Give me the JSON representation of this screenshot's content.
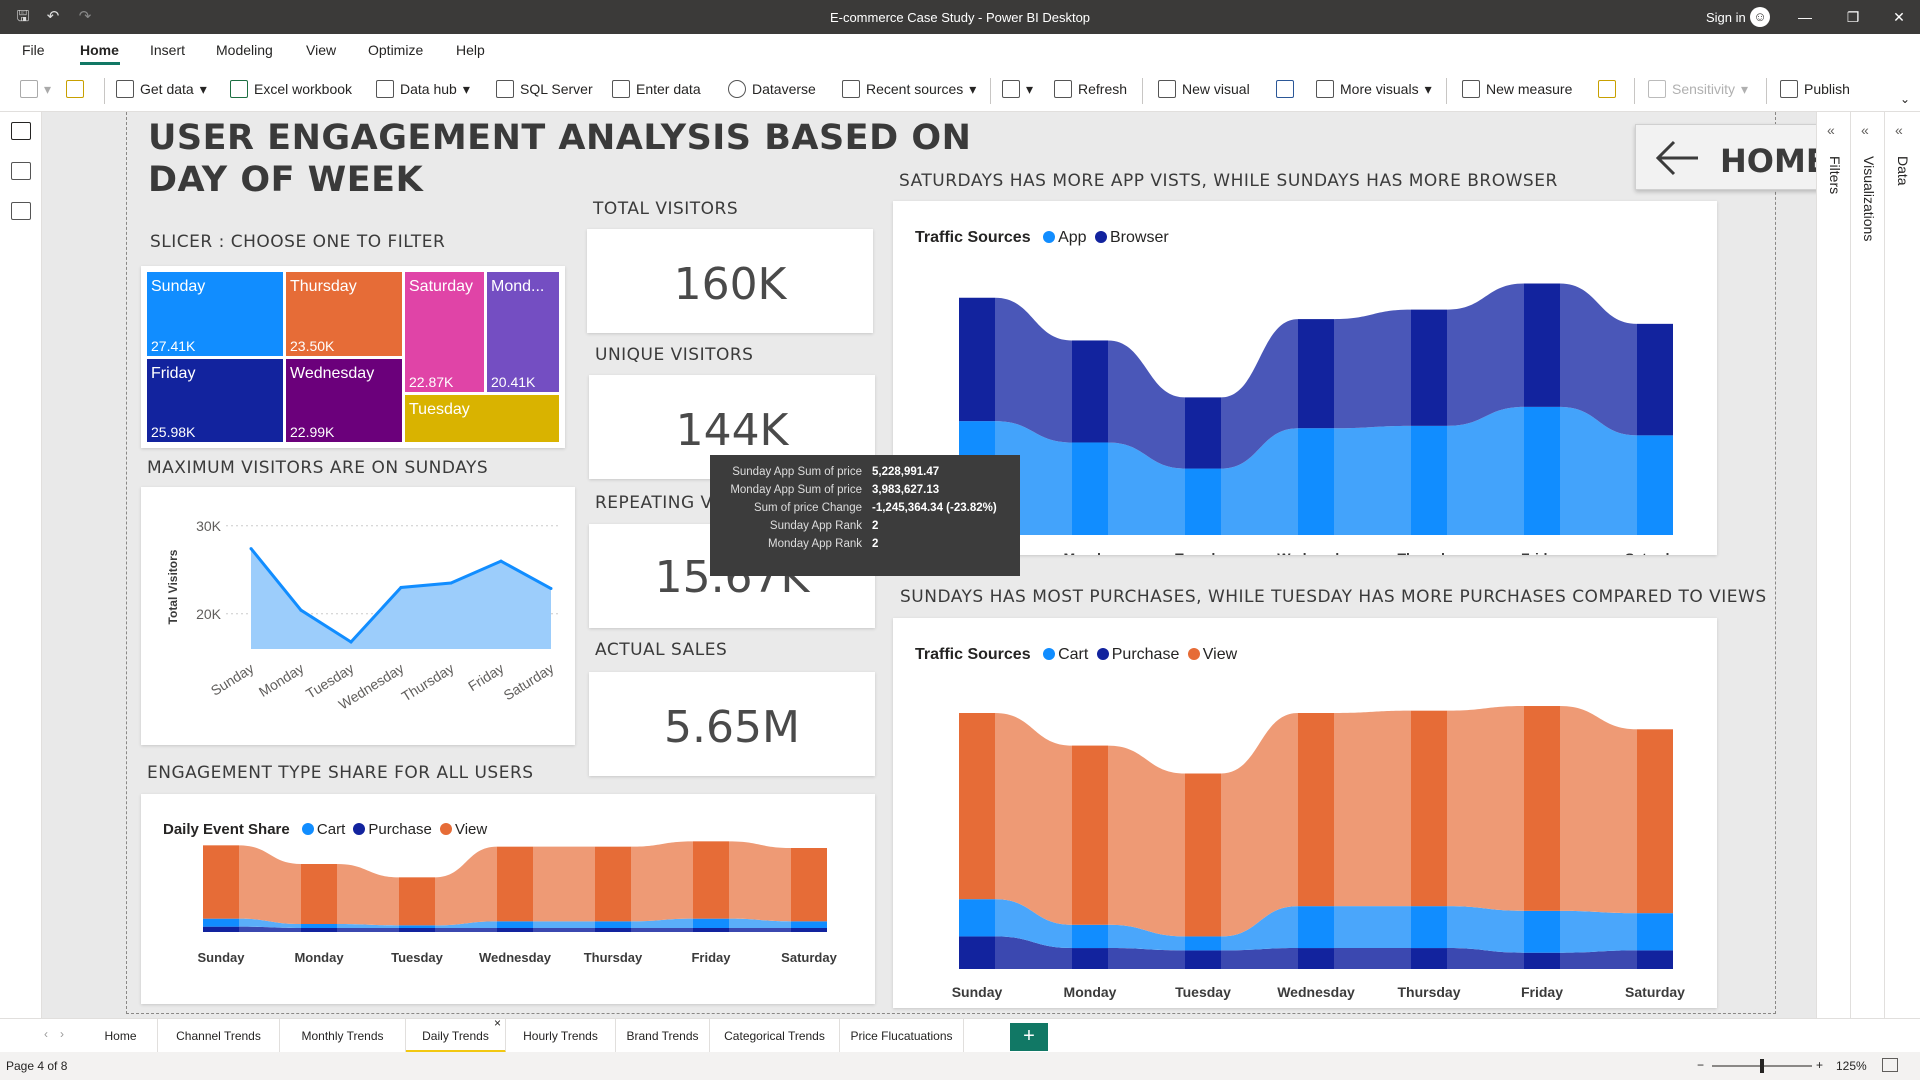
{
  "window": {
    "title": "E-commerce Case Study - Power BI Desktop",
    "sign_in": "Sign in"
  },
  "menu": [
    "File",
    "Home",
    "Insert",
    "Modeling",
    "View",
    "Optimize",
    "Help"
  ],
  "ribbon": {
    "get_data": "Get data",
    "excel_workbook": "Excel workbook",
    "data_hub": "Data hub",
    "sql_server": "SQL Server",
    "enter_data": "Enter data",
    "dataverse": "Dataverse",
    "recent_sources": "Recent sources",
    "refresh": "Refresh",
    "new_visual": "New visual",
    "more_visuals": "More visuals",
    "new_measure": "New measure",
    "sensitivity": "Sensitivity",
    "publish": "Publish"
  },
  "panes": {
    "filters": "Filters",
    "visualizations": "Visualizations",
    "data": "Data"
  },
  "report": {
    "title_line1": "USER ENGAGEMENT ANALYSIS BASED ON",
    "title_line2": "DAY OF WEEK",
    "home_button": "HOME",
    "slicer_title": "SLICER : CHOOSE ONE TO FILTER",
    "treemap": [
      {
        "day": "Sunday",
        "value": "27.41K",
        "color": "#118dff"
      },
      {
        "day": "Thursday",
        "value": "23.50K",
        "color": "#e66c37"
      },
      {
        "day": "Saturday",
        "value": "22.87K",
        "color": "#e044a7"
      },
      {
        "day": "Mond...",
        "value": "20.41K",
        "color": "#744ec2"
      },
      {
        "day": "Friday",
        "value": "25.98K",
        "color": "#12239e"
      },
      {
        "day": "Wednesday",
        "value": "22.99K",
        "color": "#6b007b"
      },
      {
        "day": "Tuesday",
        "value": "",
        "color": "#d9b300"
      }
    ],
    "max_visitors_title": "MAXIMUM VISITORS ARE ON SUNDAYS",
    "kpis": {
      "total_visitors_label": "TOTAL VISITORS",
      "total_visitors_value": "160K",
      "unique_visitors_label": "UNIQUE VISITORS",
      "unique_visitors_value": "144K",
      "repeating_label": "REPEATING VI",
      "repeating_value": "15.67K",
      "actual_sales_label": "ACTUAL SALES",
      "actual_sales_value": "5.65M"
    },
    "engagement_title": "ENGAGEMENT TYPE SHARE FOR ALL USERS",
    "saturday_title": "SATURDAYS HAS MORE APP VISTS, WHILE SUNDAYS HAS MORE BROWSER",
    "sunday_title": "SUNDAYS HAS MOST PURCHASES, WHILE TUESDAY HAS MORE PURCHASES COMPARED TO VIEWS"
  },
  "tooltip": [
    {
      "k": "Sunday App Sum of price",
      "v": "5,228,991.47"
    },
    {
      "k": "Monday App Sum of price",
      "v": "3,983,627.13"
    },
    {
      "k": "Sum of price Change",
      "v": "-1,245,364.34 (-23.82%)"
    },
    {
      "k": "Sunday App Rank",
      "v": "2"
    },
    {
      "k": "Monday App Rank",
      "v": "2"
    }
  ],
  "tabs": [
    "Home",
    "Channel Trends",
    "Monthly Trends",
    "Daily Trends",
    "Hourly Trends",
    "Brand Trends",
    "Categorical Trends",
    "Price Flucatuations"
  ],
  "active_tab": "Daily Trends",
  "status": {
    "page": "Page 4 of 8",
    "zoom": "125%"
  },
  "colors": {
    "cart": "#118dff",
    "purchase": "#12239e",
    "view": "#e66c37",
    "app": "#118dff",
    "browser": "#12239e"
  },
  "chart_data": [
    {
      "type": "area",
      "ylabel": "Total Visitors",
      "categories": [
        "Sunday",
        "Monday",
        "Tuesday",
        "Wednesday",
        "Thursday",
        "Friday",
        "Saturday"
      ],
      "values": [
        27410,
        20410,
        16800,
        22990,
        23500,
        25980,
        22870
      ],
      "ylim": [
        16000,
        31000
      ],
      "yticks": [
        "30K",
        "20K"
      ],
      "grid": true
    },
    {
      "type": "bar",
      "title": "Daily Event Share",
      "legend_title": "Daily Event Share",
      "categories": [
        "Sunday",
        "Monday",
        "Tuesday",
        "Wednesday",
        "Thursday",
        "Friday",
        "Saturday"
      ],
      "series": [
        {
          "name": "Cart",
          "values": [
            6,
            3,
            2,
            5,
            5,
            7,
            5
          ]
        },
        {
          "name": "Purchase",
          "values": [
            4,
            3,
            3,
            3,
            3,
            3,
            3
          ]
        },
        {
          "name": "View",
          "values": [
            55,
            45,
            36,
            56,
            56,
            58,
            55
          ]
        }
      ],
      "stacked": "ribbon"
    },
    {
      "type": "bar",
      "title": "Traffic Sources",
      "legend_title": "Traffic Sources",
      "categories": [
        "Sunday",
        "Monday",
        "Tuesday",
        "Wednesday",
        "Thursday",
        "Friday",
        "Saturday"
      ],
      "series": [
        {
          "name": "App",
          "values": [
            48,
            39,
            28,
            45,
            46,
            54,
            42
          ]
        },
        {
          "name": "Browser",
          "values": [
            52,
            43,
            30,
            46,
            49,
            52,
            47
          ]
        }
      ],
      "stacked": "ribbon"
    },
    {
      "type": "bar",
      "title": "Traffic Sources",
      "legend_title": "Traffic Sources",
      "categories": [
        "Sunday",
        "Monday",
        "Tuesday",
        "Wednesday",
        "Thursday",
        "Friday",
        "Saturday"
      ],
      "series": [
        {
          "name": "Cart",
          "values": [
            16,
            10,
            6,
            18,
            18,
            18,
            16
          ]
        },
        {
          "name": "Purchase",
          "values": [
            14,
            9,
            8,
            9,
            9,
            7,
            8
          ]
        },
        {
          "name": "View",
          "values": [
            80,
            77,
            70,
            83,
            84,
            88,
            79
          ]
        }
      ],
      "stacked": "ribbon"
    }
  ]
}
